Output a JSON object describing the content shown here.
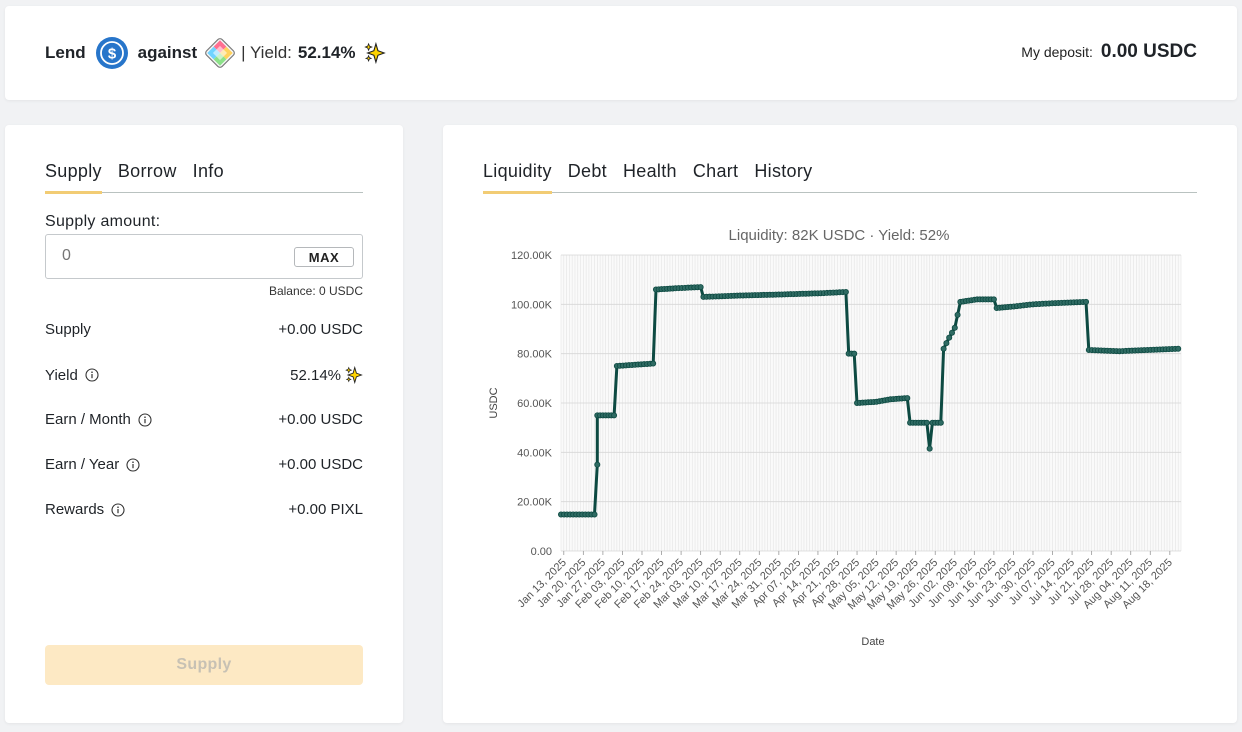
{
  "header": {
    "lend": "Lend",
    "against": "against",
    "yield_label": "| Yield:",
    "yield_value": "52.14%",
    "deposit_label": "My deposit:",
    "deposit_value": "0.00 USDC"
  },
  "left_tabs": [
    {
      "label": "Supply",
      "active": true
    },
    {
      "label": "Borrow",
      "active": false
    },
    {
      "label": "Info",
      "active": false
    }
  ],
  "supply_form": {
    "amount_label": "Supply amount:",
    "amount_placeholder": "0",
    "max_label": "MAX",
    "balance": "Balance: 0 USDC"
  },
  "stats": [
    {
      "label": "Supply",
      "value": "+0.00 USDC",
      "info": false
    },
    {
      "label": "Yield",
      "value": "52.14%",
      "info": true
    },
    {
      "label": "Earn / Month",
      "value": "+0.00 USDC",
      "info": true
    },
    {
      "label": "Earn / Year",
      "value": "+0.00 USDC",
      "info": true
    },
    {
      "label": "Rewards",
      "value": "+0.00 PIXL",
      "info": true
    }
  ],
  "supply_button": "Supply",
  "right_tabs": [
    {
      "label": "Liquidity",
      "active": true
    },
    {
      "label": "Debt",
      "active": false
    },
    {
      "label": "Health",
      "active": false
    },
    {
      "label": "Chart",
      "active": false
    },
    {
      "label": "History",
      "active": false
    }
  ],
  "colors": {
    "accent": "#f2cc74",
    "line": "#0d4a42",
    "usdc": "#2775ca"
  },
  "icons": {
    "usdc": "usdc-coin-icon",
    "pixl": "pixl-token-icon",
    "sparkle": "sparkle-icon",
    "info": "info-icon"
  },
  "chart_data": {
    "type": "line",
    "title": "Liquidity: 82K USDC · Yield: 52%",
    "xlabel": "Date",
    "ylabel": "USDC",
    "ylim": [
      0,
      120000
    ],
    "y_ticks": [
      "0.00",
      "20.00K",
      "40.00K",
      "60.00K",
      "80.00K",
      "100.00K",
      "120.00K"
    ],
    "x_ticks": [
      "Jan 13, 2025",
      "Jan 20, 2025",
      "Jan 27, 2025",
      "Feb 03, 2025",
      "Feb 10, 2025",
      "Feb 17, 2025",
      "Feb 24, 2025",
      "Mar 03, 2025",
      "Mar 10, 2025",
      "Mar 17, 2025",
      "Mar 24, 2025",
      "Mar 31, 2025",
      "Apr 07, 2025",
      "Apr 14, 2025",
      "Apr 21, 2025",
      "Apr 28, 2025",
      "May 05, 2025",
      "May 12, 2025",
      "May 19, 2025",
      "May 26, 2025",
      "Jun 02, 2025",
      "Jun 09, 2025",
      "Jun 16, 2025",
      "Jun 23, 2025",
      "Jun 30, 2025",
      "Jul 07, 2025",
      "Jul 14, 2025",
      "Jul 21, 2025",
      "Jul 28, 2025",
      "Aug 04, 2025",
      "Aug 11, 2025",
      "Aug 18, 2025"
    ],
    "grid": true,
    "legend": "none",
    "series": [
      {
        "points": [
          [
            "2025-01-12",
            14800
          ],
          [
            "2025-01-24",
            14800
          ],
          [
            "2025-01-25",
            35000
          ],
          [
            "2025-01-25",
            55000
          ],
          [
            "2025-01-31",
            55000
          ],
          [
            "2025-02-01",
            75000
          ],
          [
            "2025-02-14",
            76000
          ],
          [
            "2025-02-15",
            106000
          ],
          [
            "2025-02-22",
            106500
          ],
          [
            "2025-03-03",
            107000
          ],
          [
            "2025-03-04",
            103000
          ],
          [
            "2025-03-15",
            103500
          ],
          [
            "2025-04-01",
            104000
          ],
          [
            "2025-04-15",
            104500
          ],
          [
            "2025-04-24",
            105000
          ],
          [
            "2025-04-25",
            80000
          ],
          [
            "2025-04-27",
            80000
          ],
          [
            "2025-04-28",
            60000
          ],
          [
            "2025-05-05",
            60500
          ],
          [
            "2025-05-10",
            61500
          ],
          [
            "2025-05-16",
            62000
          ],
          [
            "2025-05-17",
            52000
          ],
          [
            "2025-05-23",
            52000
          ],
          [
            "2025-05-24",
            41500
          ],
          [
            "2025-05-25",
            52000
          ],
          [
            "2025-05-28",
            52000
          ],
          [
            "2025-05-29",
            82000
          ],
          [
            "2025-05-31",
            86500
          ],
          [
            "2025-06-02",
            90500
          ],
          [
            "2025-06-04",
            101000
          ],
          [
            "2025-06-10",
            102000
          ],
          [
            "2025-06-16",
            102000
          ],
          [
            "2025-06-17",
            98500
          ],
          [
            "2025-06-22",
            99000
          ],
          [
            "2025-06-30",
            100000
          ],
          [
            "2025-07-08",
            100500
          ],
          [
            "2025-07-19",
            101000
          ],
          [
            "2025-07-20",
            81500
          ],
          [
            "2025-07-31",
            81000
          ],
          [
            "2025-08-10",
            81500
          ],
          [
            "2025-08-21",
            82000
          ]
        ]
      }
    ]
  }
}
